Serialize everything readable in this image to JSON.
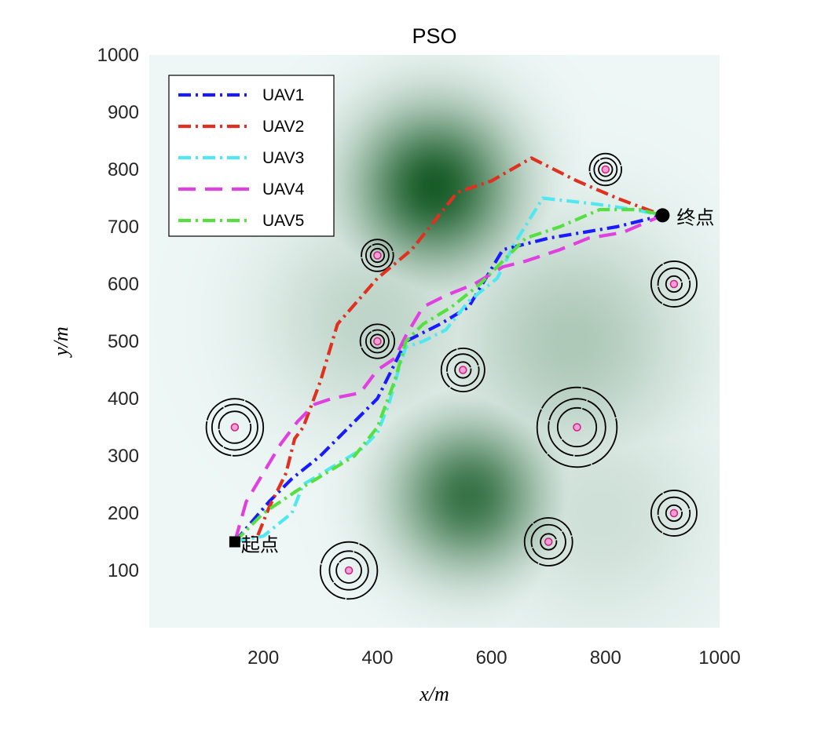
{
  "chart_data": {
    "type": "line",
    "title": "PSO",
    "xlabel": "x/m",
    "ylabel": "y/m",
    "xlim": [
      0,
      1000
    ],
    "ylim": [
      0,
      1000
    ],
    "xticks": [
      200,
      400,
      600,
      800,
      1000
    ],
    "yticks": [
      100,
      200,
      300,
      400,
      500,
      600,
      700,
      800,
      900,
      1000
    ],
    "legend_position": "top-left",
    "start": {
      "label": "起点",
      "x": 150,
      "y": 150
    },
    "end": {
      "label": "终点",
      "x": 900,
      "y": 720
    },
    "terrain_peaks": [
      {
        "x": 500,
        "y": 770,
        "strength": 1.0,
        "spread": 95
      },
      {
        "x": 560,
        "y": 230,
        "strength": 0.85,
        "spread": 90
      },
      {
        "x": 390,
        "y": 540,
        "strength": 0.22,
        "spread": 130
      },
      {
        "x": 740,
        "y": 500,
        "strength": 0.3,
        "spread": 140
      },
      {
        "x": 790,
        "y": 200,
        "strength": 0.15,
        "spread": 140
      }
    ],
    "threats": [
      {
        "x": 150,
        "y": 350,
        "rings": [
          28,
          40,
          50
        ]
      },
      {
        "x": 350,
        "y": 100,
        "rings": [
          22,
          34,
          50
        ]
      },
      {
        "x": 400,
        "y": 650,
        "rings": [
          12,
          20,
          28
        ]
      },
      {
        "x": 400,
        "y": 500,
        "rings": [
          12,
          20,
          30
        ]
      },
      {
        "x": 550,
        "y": 450,
        "rings": [
          14,
          28,
          38
        ]
      },
      {
        "x": 700,
        "y": 150,
        "rings": [
          14,
          30,
          42
        ]
      },
      {
        "x": 750,
        "y": 350,
        "rings": [
          34,
          50,
          70
        ]
      },
      {
        "x": 800,
        "y": 800,
        "rings": [
          12,
          20,
          28
        ]
      },
      {
        "x": 920,
        "y": 600,
        "rings": [
          14,
          28,
          40
        ]
      },
      {
        "x": 920,
        "y": 200,
        "rings": [
          14,
          28,
          40
        ]
      }
    ],
    "series": [
      {
        "name": "UAV1",
        "color": "#1a1aff",
        "dash": "dashdot",
        "x": [
          150,
          210,
          250,
          300,
          360,
          400,
          450,
          470,
          510,
          560,
          620,
          700,
          760,
          820,
          900
        ],
        "y": [
          150,
          220,
          260,
          300,
          360,
          400,
          500,
          510,
          530,
          560,
          660,
          680,
          690,
          700,
          720
        ]
      },
      {
        "name": "UAV2",
        "color": "#e03020",
        "dash": "dashdot",
        "x": [
          150,
          190,
          210,
          240,
          255,
          270,
          300,
          330,
          400,
          460,
          540,
          600,
          670,
          750,
          820,
          900
        ],
        "y": [
          150,
          160,
          210,
          270,
          330,
          350,
          430,
          530,
          610,
          660,
          760,
          780,
          820,
          780,
          750,
          720
        ]
      },
      {
        "name": "UAV3",
        "color": "#50e8f0",
        "dash": "dashdot",
        "x": [
          150,
          200,
          250,
          270,
          320,
          370,
          400,
          420,
          440,
          450,
          480,
          520,
          560,
          610,
          640,
          690,
          780,
          850,
          900
        ],
        "y": [
          150,
          160,
          200,
          250,
          280,
          310,
          340,
          390,
          460,
          490,
          500,
          520,
          570,
          610,
          670,
          750,
          740,
          730,
          720
        ]
      },
      {
        "name": "UAV4",
        "color": "#e040e0",
        "dash": "dash",
        "x": [
          150,
          170,
          200,
          230,
          260,
          290,
          320,
          370,
          400,
          430,
          450,
          480,
          520,
          570,
          620,
          660,
          720,
          770,
          830,
          900
        ],
        "y": [
          150,
          220,
          270,
          320,
          360,
          390,
          400,
          410,
          450,
          470,
          510,
          560,
          580,
          600,
          630,
          640,
          660,
          680,
          690,
          720
        ]
      },
      {
        "name": "UAV5",
        "color": "#55e040",
        "dash": "dashdot",
        "x": [
          150,
          200,
          260,
          310,
          360,
          400,
          430,
          450,
          480,
          530,
          580,
          620,
          660,
          720,
          790,
          860,
          900
        ],
        "y": [
          150,
          200,
          240,
          270,
          300,
          350,
          430,
          500,
          530,
          560,
          600,
          640,
          680,
          700,
          730,
          730,
          720
        ]
      }
    ]
  }
}
